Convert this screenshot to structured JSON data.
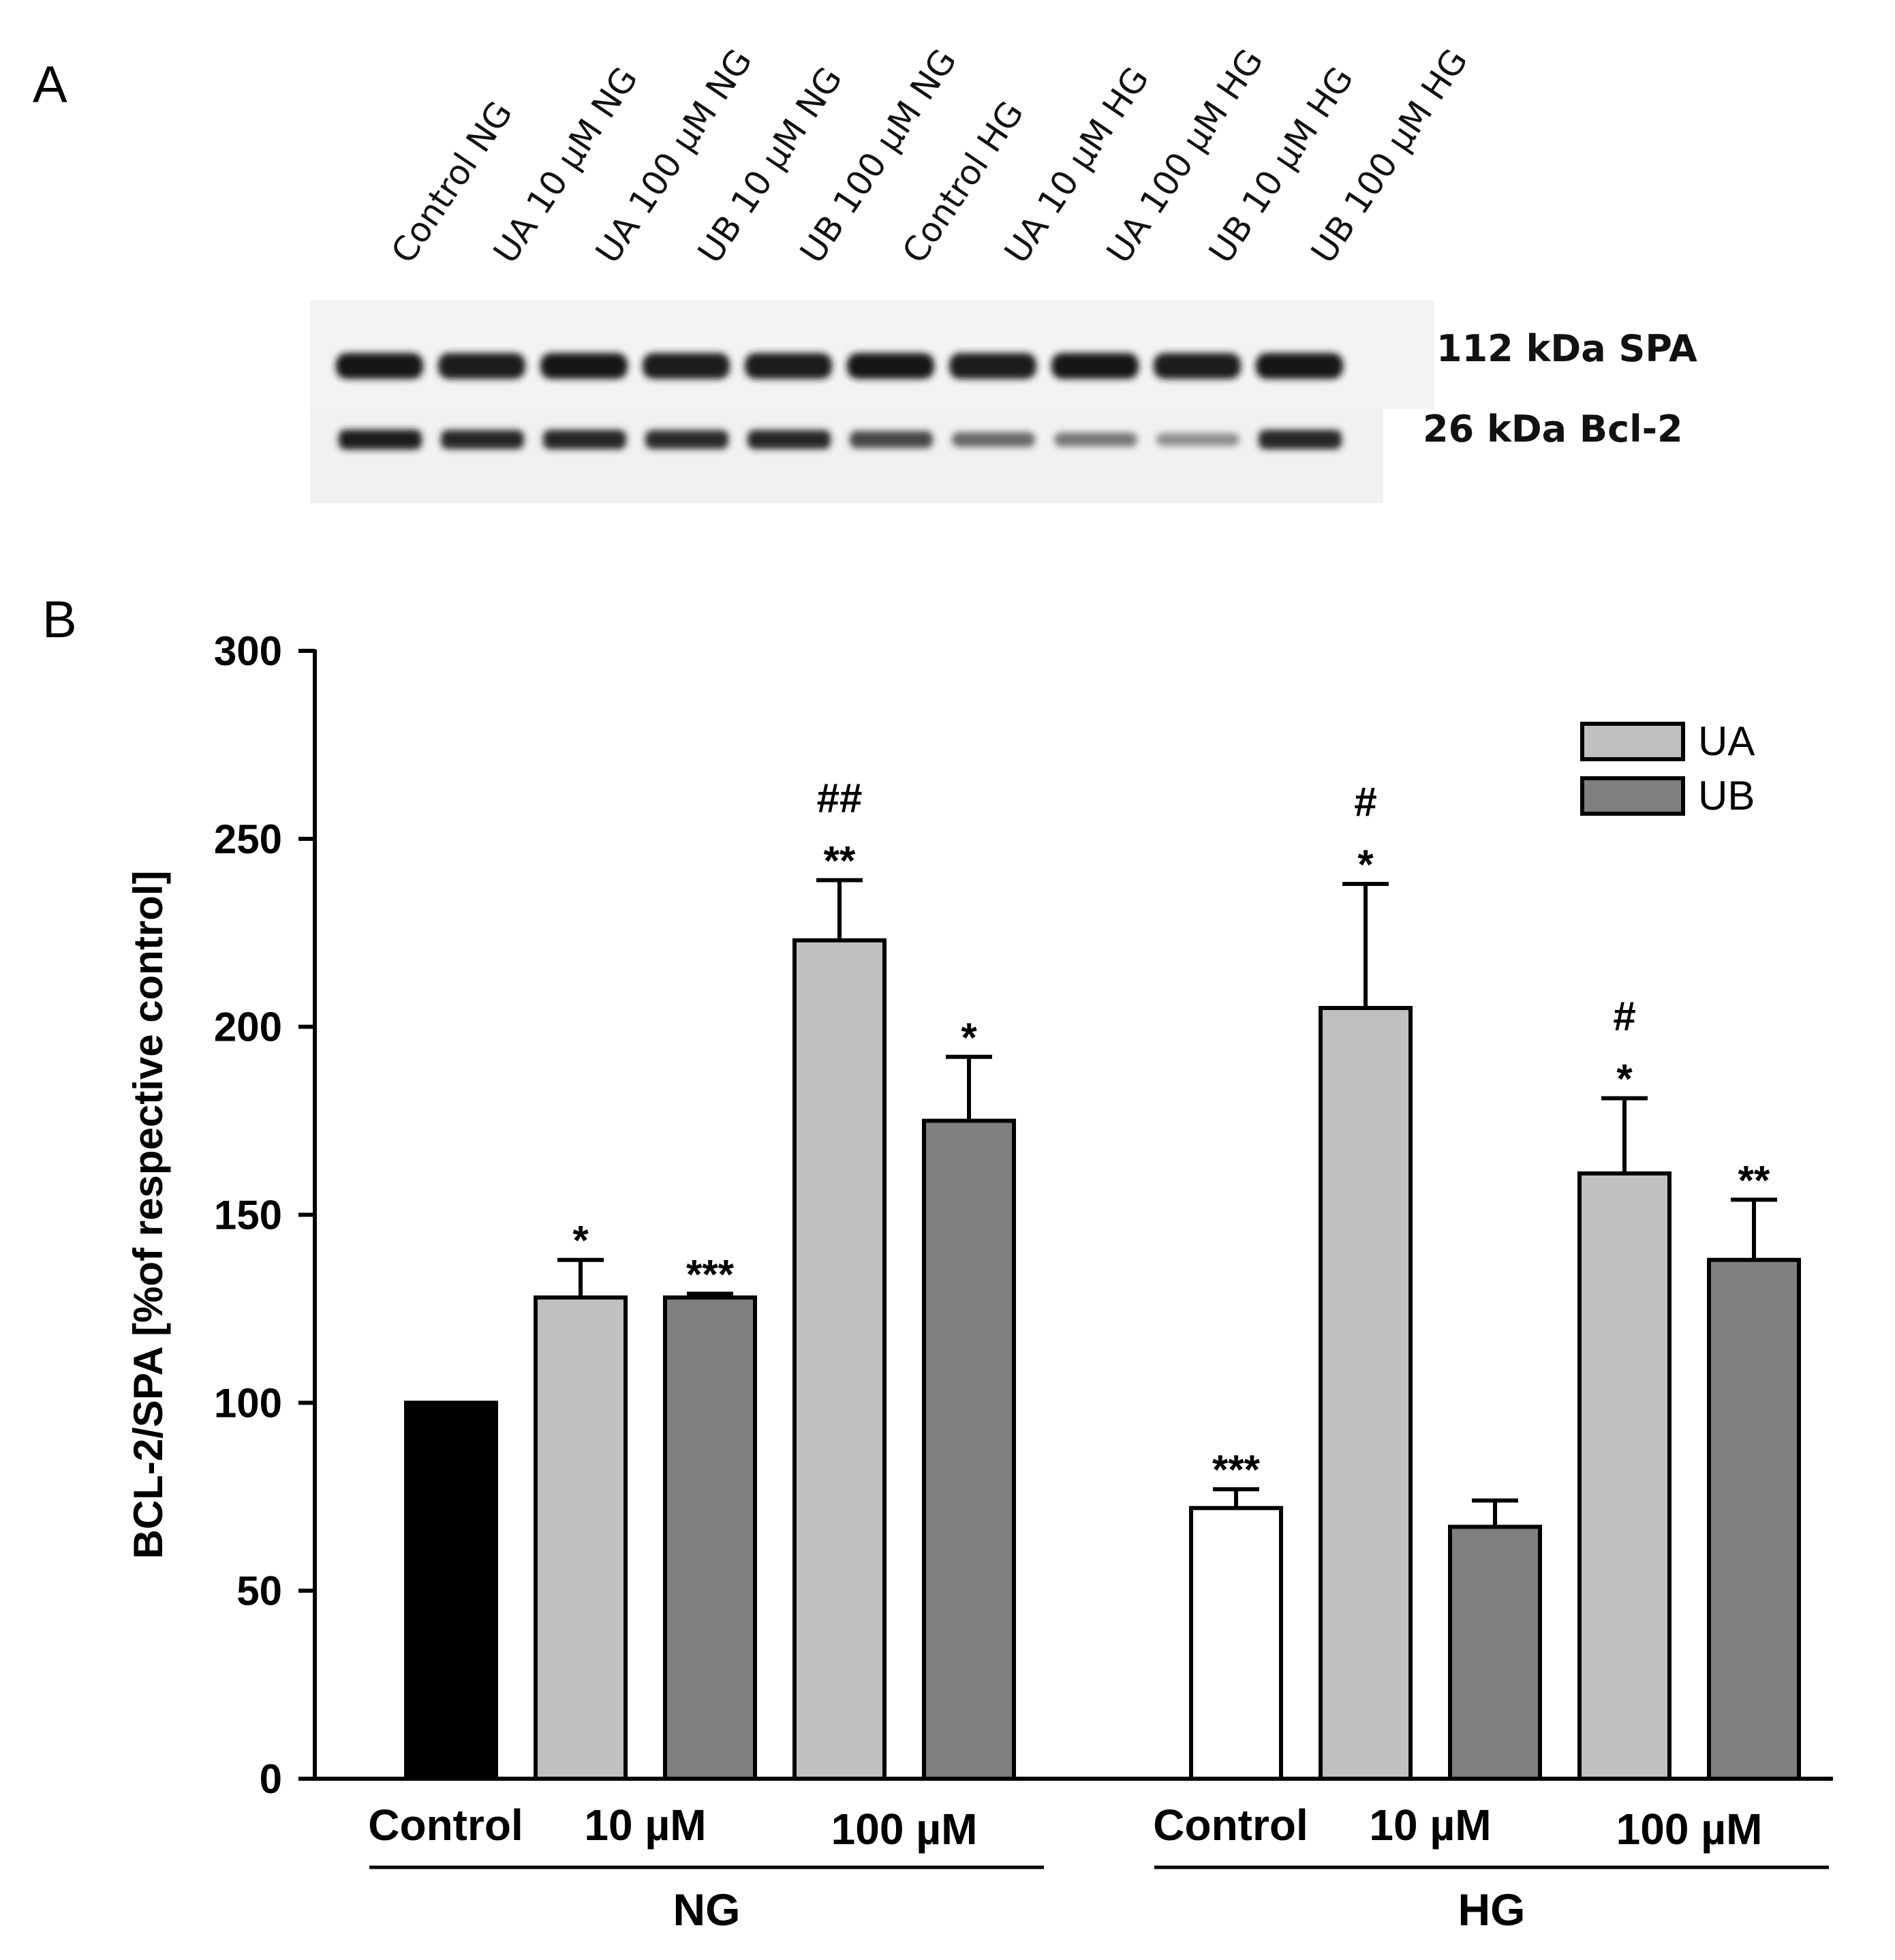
{
  "figure": {
    "panel_a_label": "A",
    "panel_b_label": "B"
  },
  "blot": {
    "lanes": [
      "Control NG",
      "UA 10 µM NG",
      "UA 100 µM NG",
      "UB 10 µM NG",
      "UB 100 µM NG",
      "Control HG",
      "UA 10 µM HG",
      "UA 100 µM HG",
      "UB 10 µM HG",
      "UB 100 µM HG"
    ],
    "spa_label": "112 kDa  SPA",
    "bcl2_label": "26 kDa   Bcl-2",
    "spa_intensity": [
      0.95,
      0.88,
      0.95,
      0.9,
      0.92,
      0.93,
      0.85,
      0.95,
      0.85,
      1.0
    ],
    "bcl2_intensity": [
      0.95,
      0.88,
      0.9,
      0.86,
      0.88,
      0.7,
      0.5,
      0.42,
      0.3,
      0.9
    ]
  },
  "chart_data": {
    "type": "bar",
    "ylabel": "BCL-2/SPA  [%of  respective control]",
    "ylim": [
      0,
      300
    ],
    "yticks": [
      0,
      50,
      100,
      150,
      200,
      250,
      300
    ],
    "legend": [
      {
        "name": "UA",
        "color": "#c0c0c0"
      },
      {
        "name": "UB",
        "color": "#808080"
      }
    ],
    "legend_position": "top-right",
    "groups": [
      {
        "name": "NG",
        "categories": [
          "Control",
          "10 µM",
          "100 µM"
        ],
        "bars": [
          {
            "label": "Control",
            "series": "Control NG",
            "value": 100,
            "error": 0,
            "annot": [],
            "color": "#000000"
          },
          {
            "label": "UA 10 µM",
            "series": "UA",
            "value": 128,
            "error": 10,
            "annot": [
              "*"
            ],
            "color": "#c0c0c0"
          },
          {
            "label": "UB 10 µM",
            "series": "UB",
            "value": 128,
            "error": 1,
            "annot": [
              "***"
            ],
            "color": "#808080"
          },
          {
            "label": "UA 100 µM",
            "series": "UA",
            "value": 223,
            "error": 16,
            "annot": [
              "**",
              "##"
            ],
            "color": "#c0c0c0"
          },
          {
            "label": "UB 100 µM",
            "series": "UB",
            "value": 175,
            "error": 17,
            "annot": [
              "*"
            ],
            "color": "#808080"
          }
        ]
      },
      {
        "name": "HG",
        "categories": [
          "Control",
          "10 µM",
          "100 µM"
        ],
        "bars": [
          {
            "label": "Control",
            "series": "Control HG",
            "value": 72,
            "error": 5,
            "annot": [
              "***"
            ],
            "color": "#ffffff"
          },
          {
            "label": "UA 10 µM",
            "series": "UA",
            "value": 205,
            "error": 33,
            "annot": [
              "*",
              "#"
            ],
            "color": "#c0c0c0"
          },
          {
            "label": "UB 10 µM",
            "series": "UB",
            "value": 67,
            "error": 7,
            "annot": [],
            "color": "#808080"
          },
          {
            "label": "UA 100 µM",
            "series": "UA",
            "value": 161,
            "error": 20,
            "annot": [
              "*",
              "#"
            ],
            "color": "#c0c0c0"
          },
          {
            "label": "UB 100 µM",
            "series": "UB",
            "value": 138,
            "error": 16,
            "annot": [
              "**"
            ],
            "color": "#808080"
          }
        ]
      }
    ]
  }
}
